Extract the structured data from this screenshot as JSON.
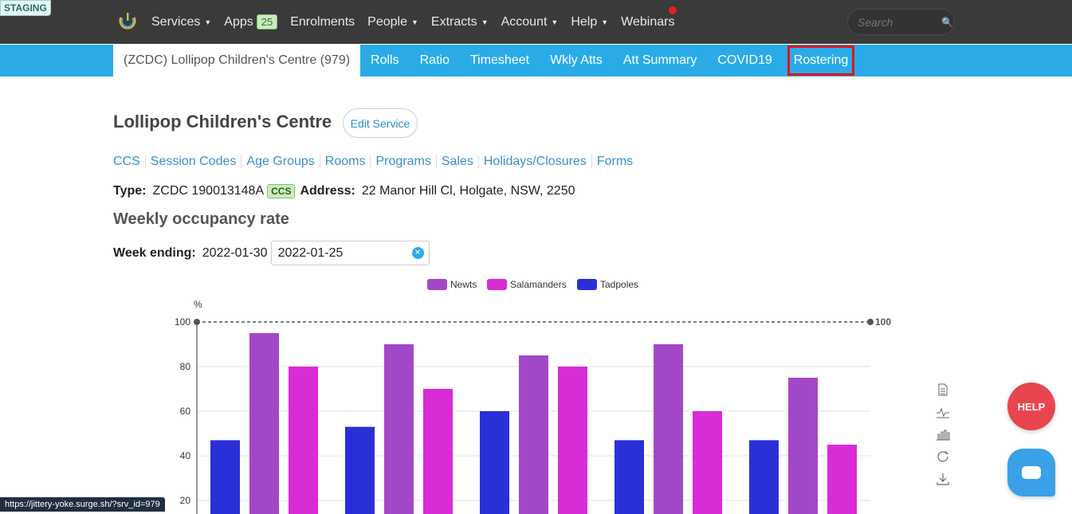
{
  "env_badge": "STAGING",
  "nav": {
    "items": [
      {
        "label": "Services",
        "caret": true
      },
      {
        "label": "Apps",
        "badge": "25"
      },
      {
        "label": "Enrolments"
      },
      {
        "label": "People",
        "caret": true
      },
      {
        "label": "Extracts",
        "caret": true
      },
      {
        "label": "Account",
        "caret": true
      },
      {
        "label": "Help",
        "caret": true
      },
      {
        "label": "Webinars"
      }
    ],
    "search_placeholder": "Search"
  },
  "subnav": {
    "service": "(ZCDC) Lollipop Children's Centre (979)",
    "items": [
      "Rolls",
      "Ratio",
      "Timesheet",
      "Wkly Atts",
      "Att Summary",
      "COVID19",
      "Rostering"
    ]
  },
  "page": {
    "title": "Lollipop Children's Centre",
    "edit_button": "Edit Service",
    "links": [
      "CCS",
      "Session Codes",
      "Age Groups",
      "Rooms",
      "Programs",
      "Sales",
      "Holidays/Closures",
      "Forms"
    ],
    "type_label": "Type:",
    "type_value": "ZCDC 190013148A",
    "ccs_badge": "CCS",
    "address_label": "Address:",
    "address_value": "22 Manor Hill Cl, Holgate, NSW, 2250",
    "section_title": "Weekly occupancy rate",
    "week_label": "Week ending:",
    "week_value": "2022-01-30",
    "date_input_value": "2022-01-25"
  },
  "help_label": "HELP",
  "status_url": "https://jittery-yoke.surge.sh/?srv_id=979",
  "colors": {
    "newts": "#a347c9",
    "salamanders": "#d82cd6",
    "tadpoles": "#2a30d8",
    "accent": "#2aabe8"
  },
  "chart_data": {
    "type": "bar",
    "ylabel": "%",
    "ylim": [
      0,
      100
    ],
    "yticks": [
      20,
      40,
      60,
      80,
      100
    ],
    "markline": 100,
    "legend_position": "top-center",
    "grid": true,
    "groups": 5,
    "series": [
      {
        "name": "Tadpoles",
        "values": [
          47,
          53,
          60,
          47,
          47
        ]
      },
      {
        "name": "Newts",
        "values": [
          95,
          90,
          85,
          90,
          75
        ]
      },
      {
        "name": "Salamanders",
        "values": [
          80,
          70,
          80,
          60,
          45
        ]
      }
    ],
    "legend": [
      "Newts",
      "Salamanders",
      "Tadpoles"
    ]
  }
}
